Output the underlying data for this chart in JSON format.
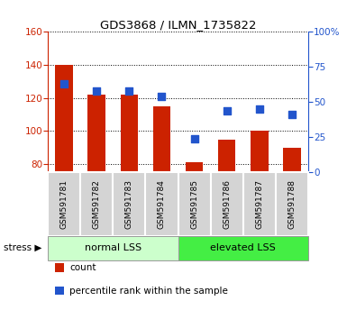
{
  "title": "GDS3868 / ILMN_1735822",
  "categories": [
    "GSM591781",
    "GSM591782",
    "GSM591783",
    "GSM591784",
    "GSM591785",
    "GSM591786",
    "GSM591787",
    "GSM591788"
  ],
  "count_values": [
    140,
    122,
    122,
    115,
    81,
    95,
    100,
    90
  ],
  "percentile_values": [
    63,
    58,
    58,
    54,
    24,
    44,
    45,
    41
  ],
  "ylim_left": [
    75,
    160
  ],
  "ylim_right": [
    0,
    100
  ],
  "yticks_left": [
    80,
    100,
    120,
    140,
    160
  ],
  "yticks_right": [
    0,
    25,
    50,
    75,
    100
  ],
  "bar_color": "#cc2200",
  "dot_color": "#2255cc",
  "group1_label": "normal LSS",
  "group2_label": "elevated LSS",
  "group1_color": "#ccffcc",
  "group2_color": "#44ee44",
  "stress_label": "stress",
  "legend1": "count",
  "legend2": "percentile rank within the sample",
  "left_axis_color": "#cc2200",
  "right_axis_color": "#2255cc",
  "bar_width": 0.55,
  "dot_size": 35,
  "tick_label_bg": "#d4d4d4",
  "n_group1": 4,
  "n_group2": 4
}
